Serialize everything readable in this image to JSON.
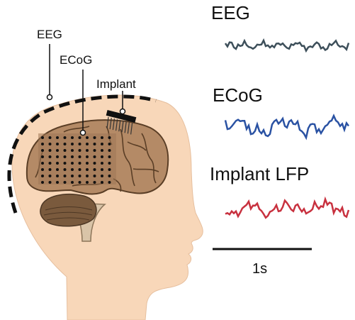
{
  "labels": {
    "eeg": "EEG",
    "ecog": "ECoG",
    "implant": "Implant"
  },
  "traces": [
    {
      "label": "EEG",
      "color": "#3d4f5a"
    },
    {
      "label": "ECoG",
      "color": "#2a52a3"
    },
    {
      "label": "Implant LFP",
      "color": "#c8313f"
    }
  ],
  "scale_bar": {
    "label": "1s"
  },
  "colors": {
    "skin": "#f8d7b9",
    "brain": "#b48a66",
    "cerebellum": "#7a5a3d",
    "brainstem": "#d9c4a8",
    "outline": "#000000"
  }
}
